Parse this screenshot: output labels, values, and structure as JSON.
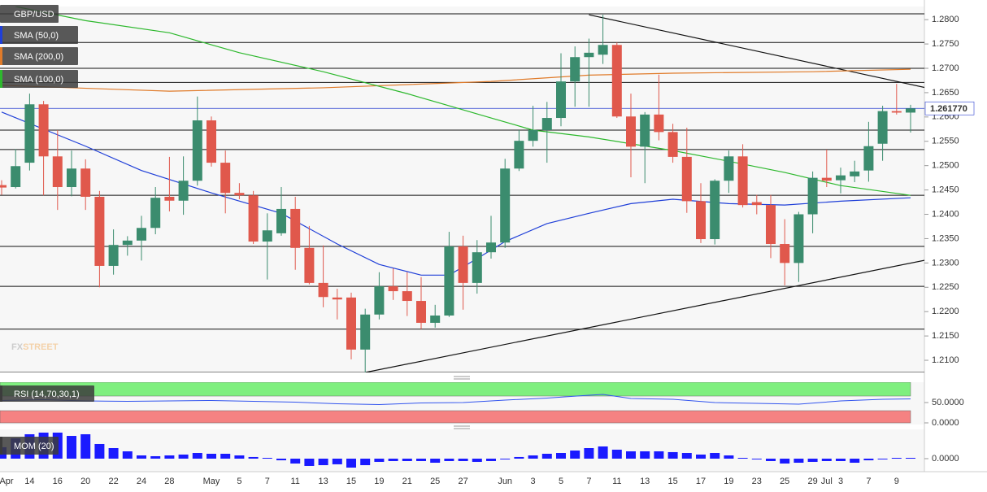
{
  "chart_data": [
    {
      "type": "candlestick",
      "title": "GBP/USD",
      "categories": [
        "Apr",
        null,
        "14",
        null,
        "16",
        null,
        "20",
        null,
        "22",
        null,
        "24",
        null,
        "28",
        null,
        null,
        "May",
        null,
        "5",
        null,
        "7",
        null,
        "11",
        null,
        "13",
        null,
        "15",
        null,
        "19",
        null,
        "21",
        null,
        "25",
        null,
        "27",
        null,
        null,
        "Jun",
        null,
        "3",
        null,
        "5",
        null,
        "7",
        null,
        "11",
        null,
        "13",
        null,
        "15",
        null,
        "17",
        null,
        "19",
        null,
        "23",
        null,
        "25",
        null,
        "29",
        "Jul",
        "3",
        null,
        "7",
        null,
        "9",
        null
      ],
      "open": [
        1.246,
        1.2456,
        1.2506,
        1.2626,
        1.2519,
        1.2456,
        1.2494,
        1.2436,
        1.2294,
        1.2337,
        1.2346,
        1.2372,
        1.2436,
        1.2428,
        1.2469,
        1.2593,
        1.2506,
        1.2444,
        1.2439,
        1.2344,
        1.2361,
        1.2411,
        1.2331,
        1.2259,
        1.2229,
        1.2229,
        1.2122,
        1.2194,
        1.2252,
        1.2242,
        1.2222,
        1.2177,
        1.2192,
        1.2334,
        1.2259,
        1.2322,
        1.2342,
        1.2494,
        1.2551,
        1.2573,
        1.2598,
        1.2673,
        1.2723,
        1.2728,
        1.2748,
        1.2601,
        1.2539,
        1.2605,
        1.2569,
        1.2518,
        1.2427,
        1.2349,
        1.2469,
        1.2519,
        1.2425,
        1.2419,
        1.2339,
        1.23,
        1.24,
        1.2475,
        1.247,
        1.2478,
        1.249,
        1.2545,
        1.2612,
        1.2609
      ],
      "high": [
        1.247,
        1.2534,
        1.2648,
        1.2633,
        1.2573,
        1.2531,
        1.2513,
        1.2448,
        1.2369,
        1.2355,
        1.2397,
        1.2456,
        1.2518,
        1.2519,
        1.2642,
        1.2601,
        1.2531,
        1.2464,
        1.2448,
        1.2402,
        1.2456,
        1.2436,
        1.2376,
        1.2336,
        1.2247,
        1.2239,
        1.2206,
        1.2281,
        1.2289,
        1.2281,
        1.2271,
        1.2214,
        1.2364,
        1.2356,
        1.2347,
        1.2397,
        1.2514,
        1.2573,
        1.2623,
        1.2631,
        1.2731,
        1.2745,
        1.2761,
        1.281,
        1.2753,
        1.2648,
        1.261,
        1.2687,
        1.2586,
        1.2578,
        1.2464,
        1.2472,
        1.2531,
        1.2544,
        1.244,
        1.244,
        1.239,
        1.2405,
        1.2488,
        1.2533,
        1.2496,
        1.251,
        1.259,
        1.2623,
        1.2668,
        1.2625
      ],
      "low": [
        1.244,
        1.2453,
        1.249,
        1.2439,
        1.2409,
        1.2437,
        1.2409,
        1.225,
        1.2276,
        1.2315,
        1.2305,
        1.2359,
        1.2406,
        1.2399,
        1.2459,
        1.2498,
        1.2402,
        1.2431,
        1.2339,
        1.2266,
        1.2356,
        1.2286,
        1.2256,
        1.2209,
        1.2184,
        1.2102,
        1.2075,
        1.2184,
        1.2224,
        1.2191,
        1.2164,
        1.2167,
        1.2189,
        1.2204,
        1.2237,
        1.2309,
        1.2331,
        1.2489,
        1.2539,
        1.2506,
        1.2581,
        1.2621,
        1.2621,
        1.2709,
        1.2598,
        1.2476,
        1.2464,
        1.2552,
        1.2506,
        1.2403,
        1.2341,
        1.2338,
        1.2444,
        1.2414,
        1.24,
        1.231,
        1.2254,
        1.2261,
        1.2361,
        1.2456,
        1.2443,
        1.2466,
        1.2467,
        1.251,
        1.2605,
        1.2568
      ],
      "close": [
        1.2455,
        1.2499,
        1.2626,
        1.2519,
        1.2456,
        1.2494,
        1.2436,
        1.2294,
        1.2337,
        1.2346,
        1.2372,
        1.2434,
        1.2428,
        1.2469,
        1.2593,
        1.2506,
        1.2444,
        1.2439,
        1.2344,
        1.2367,
        1.2411,
        1.2331,
        1.2259,
        1.223,
        1.2225,
        1.2122,
        1.2194,
        1.2252,
        1.2242,
        1.2222,
        1.2177,
        1.2192,
        1.2334,
        1.2259,
        1.2322,
        1.2342,
        1.2494,
        1.2551,
        1.2573,
        1.2598,
        1.2673,
        1.2723,
        1.2732,
        1.2748,
        1.2601,
        1.2539,
        1.2605,
        1.2569,
        1.2518,
        1.2427,
        1.2349,
        1.2469,
        1.2519,
        1.2419,
        1.2419,
        1.2339,
        1.23,
        1.24,
        1.2475,
        1.2469,
        1.248,
        1.2488,
        1.254,
        1.2612,
        1.2609,
        1.26177
      ],
      "up_color": "#3b8c6e",
      "down_color": "#e0584c",
      "series": [
        {
          "name": "SMA (50,0)",
          "color": "#1f3fd8",
          "x": [
            0,
            6,
            10,
            15,
            20,
            24,
            27,
            30,
            32,
            34,
            36,
            39,
            42,
            45,
            48,
            52,
            56,
            60,
            65
          ],
          "values": [
            1.261,
            1.254,
            1.249,
            1.2444,
            1.2402,
            1.2339,
            1.2297,
            1.2275,
            1.2275,
            1.2309,
            1.2344,
            1.2381,
            1.2402,
            1.2422,
            1.2431,
            1.2422,
            1.2419,
            1.2427,
            1.2434
          ]
        },
        {
          "name": "SMA (200,0)",
          "color": "#e07b2a",
          "x": [
            0,
            12,
            23,
            35,
            42,
            48,
            58,
            65
          ],
          "values": [
            1.2665,
            1.2653,
            1.266,
            1.2673,
            1.2686,
            1.269,
            1.2693,
            1.2698
          ]
        },
        {
          "name": "SMA (100,0)",
          "color": "#2db82d",
          "x": [
            1,
            6,
            12,
            17,
            23,
            29,
            35,
            38,
            42,
            48,
            52,
            56,
            60,
            65
          ],
          "values": [
            1.2827,
            1.2798,
            1.2773,
            1.2732,
            1.2693,
            1.2648,
            1.2598,
            1.2573,
            1.2559,
            1.2531,
            1.2509,
            1.2486,
            1.2459,
            1.2439
          ]
        }
      ],
      "levels": [
        1.2812,
        1.2753,
        1.27,
        1.2671,
        1.2573,
        1.2533,
        1.2439,
        1.2334,
        1.2252,
        1.2164,
        1.2075
      ],
      "trendlines": [
        {
          "x": [
            42,
            66.1
          ],
          "values": [
            1.281,
            1.266
          ]
        },
        {
          "x": [
            26,
            66.1
          ],
          "values": [
            1.2075,
            1.2306
          ]
        }
      ],
      "price_marker": {
        "value": 1.26177,
        "label": "1.261770"
      },
      "watermark": [
        "FX",
        "STREET"
      ],
      "ylim": [
        1.2075,
        1.2827
      ],
      "yticks": [
        {
          "value": 1.21,
          "label": "1.2100"
        },
        {
          "value": 1.215,
          "label": "1.2150"
        },
        {
          "value": 1.22,
          "label": "1.2200"
        },
        {
          "value": 1.225,
          "label": "1.2250"
        },
        {
          "value": 1.23,
          "label": "1.2300"
        },
        {
          "value": 1.235,
          "label": "1.2350"
        },
        {
          "value": 1.24,
          "label": "1.2400"
        },
        {
          "value": 1.245,
          "label": "1.2450"
        },
        {
          "value": 1.25,
          "label": "1.2500"
        },
        {
          "value": 1.255,
          "label": "1.2550"
        },
        {
          "value": 1.26,
          "label": "1.2600"
        },
        {
          "value": 1.265,
          "label": "1.2650"
        },
        {
          "value": 1.27,
          "label": "1.2700"
        },
        {
          "value": 1.275,
          "label": "1.2750"
        },
        {
          "value": 1.28,
          "label": "1.2800"
        }
      ]
    },
    {
      "type": "line",
      "title": "RSI (14,70,30,1)",
      "color": "#3355ee",
      "x": [
        0,
        3,
        6,
        9,
        12,
        15,
        18,
        21,
        24,
        27,
        30,
        33,
        36,
        39,
        42,
        43,
        45,
        48,
        51,
        54,
        57,
        60,
        63,
        65
      ],
      "values": [
        55,
        57,
        54,
        53,
        54,
        55,
        53,
        51,
        47,
        45,
        49,
        50,
        56,
        61,
        68,
        70,
        60,
        58,
        50,
        48,
        46,
        54,
        58,
        59
      ],
      "bands": [
        {
          "from": 66,
          "to": 100,
          "color": "#7fef7f"
        },
        {
          "from": 0,
          "to": 30,
          "color": "#f58282"
        }
      ],
      "ylim": [
        0,
        100
      ],
      "yticks": [
        {
          "value": 50,
          "label": "50.0000"
        },
        {
          "value": 0,
          "label": "0.0000"
        }
      ]
    },
    {
      "type": "bar",
      "title": "MOM (20)",
      "color": "#1a1aff",
      "values": [
        0.0187,
        0.0333,
        0.04,
        0.0427,
        0.0427,
        0.0373,
        0.04,
        0.024,
        0.0173,
        0.012,
        0.0053,
        0.004,
        0.0053,
        0.0067,
        0.0093,
        0.008,
        0.008,
        0.0053,
        0.0027,
        0.0013,
        -0.0027,
        -0.008,
        -0.012,
        -0.0107,
        -0.0093,
        -0.0147,
        -0.0107,
        -0.0053,
        -0.004,
        -0.004,
        -0.004,
        -0.0067,
        -0.004,
        -0.004,
        -0.0053,
        -0.004,
        -0.0013,
        0.0027,
        0.0053,
        0.008,
        0.0093,
        0.0133,
        0.0173,
        0.02,
        0.0147,
        0.012,
        0.012,
        0.012,
        0.0107,
        0.0093,
        0.0067,
        0.0093,
        0.0053,
        0.0013,
        -0.0013,
        -0.004,
        -0.008,
        -0.0067,
        -0.0053,
        -0.004,
        -0.004,
        -0.0067,
        -0.0027,
        -0.0013,
        0.0013,
        0.0013
      ],
      "ylim": [
        -0.0187,
        0.048
      ],
      "yticks": [
        {
          "value": 0,
          "label": "0.0000"
        }
      ]
    }
  ]
}
